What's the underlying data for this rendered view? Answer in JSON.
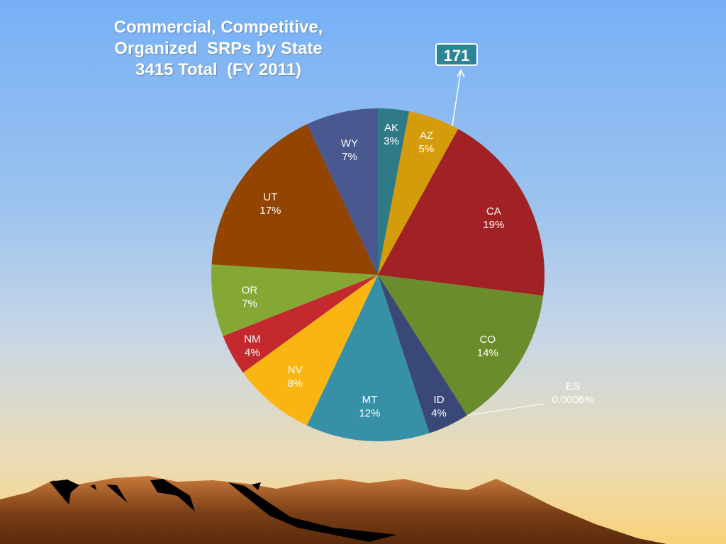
{
  "chart_data": {
    "type": "pie",
    "title": [
      "Commercial, Competitive,",
      "Organized  SRPs by State",
      "3415 Total  (FY 2011)"
    ],
    "callout": {
      "label": "171",
      "target": "AZ"
    },
    "slices": [
      {
        "label": "AK",
        "value": 3,
        "display": "3%",
        "color": "#2e7a87",
        "text_color": "#ffffff"
      },
      {
        "label": "AZ",
        "value": 5,
        "display": "5%",
        "color": "#d49b0a",
        "text_color": "#ffffff"
      },
      {
        "label": "CA",
        "value": 19,
        "display": "19%",
        "color": "#a12124",
        "text_color": "#ffffff"
      },
      {
        "label": "CO",
        "value": 14,
        "display": "14%",
        "color": "#6a8c2c",
        "text_color": "#ffffff"
      },
      {
        "label": "ES",
        "value": 0.0006,
        "display": "0.0006%",
        "color": "#e8e8e8",
        "text_color": "#ffffff",
        "outside": true
      },
      {
        "label": "ID",
        "value": 4,
        "display": "4%",
        "color": "#3a4878",
        "text_color": "#ffffff"
      },
      {
        "label": "MT",
        "value": 12,
        "display": "12%",
        "color": "#3690a6",
        "text_color": "#ffffff"
      },
      {
        "label": "NV",
        "value": 8,
        "display": "8%",
        "color": "#fab512",
        "text_color": "#ffffff"
      },
      {
        "label": "NM",
        "value": 4,
        "display": "4%",
        "color": "#c4292e",
        "text_color": "#ffffff"
      },
      {
        "label": "OR",
        "value": 7,
        "display": "7%",
        "color": "#85a834",
        "text_color": "#ffffff"
      },
      {
        "label": "UT",
        "value": 17,
        "display": "17%",
        "color": "#924400",
        "text_color": "#ffffff"
      },
      {
        "label": "WY",
        "value": 7,
        "display": "7%",
        "color": "#4a5890",
        "text_color": "#ffffff"
      }
    ]
  }
}
